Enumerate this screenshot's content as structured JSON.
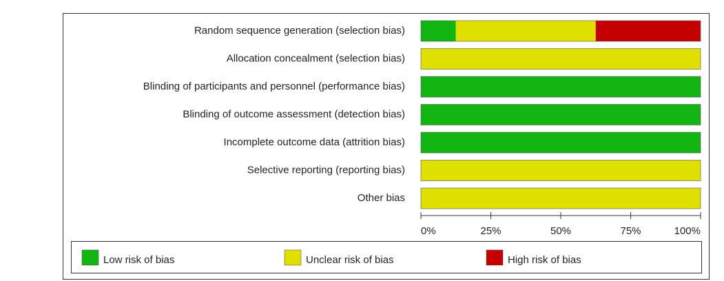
{
  "chart_data": {
    "type": "stacked-bar-horizontal",
    "categories": [
      "Random sequence generation (selection bias)",
      "Allocation concealment (selection bias)",
      "Blinding of participants and personnel (performance bias)",
      "Blinding of outcome assessment (detection bias)",
      "Incomplete outcome data (attrition bias)",
      "Selective reporting (reporting bias)",
      "Other bias"
    ],
    "series": [
      {
        "name": "Low risk of bias",
        "color": "#13b513",
        "values": [
          12.5,
          0,
          100,
          100,
          100,
          0,
          0
        ]
      },
      {
        "name": "Unclear risk of bias",
        "color": "#e0e000",
        "values": [
          50,
          100,
          0,
          0,
          0,
          100,
          100
        ]
      },
      {
        "name": "High risk of bias",
        "color": "#c40000",
        "values": [
          37.5,
          0,
          0,
          0,
          0,
          0,
          0
        ]
      }
    ],
    "xlim": [
      0,
      100
    ],
    "xticks": [
      {
        "value": 0,
        "label": "0%"
      },
      {
        "value": 25,
        "label": "25%"
      },
      {
        "value": 50,
        "label": "50%"
      },
      {
        "value": 75,
        "label": "75%"
      },
      {
        "value": 100,
        "label": "100%"
      }
    ],
    "legend": "bottom"
  }
}
